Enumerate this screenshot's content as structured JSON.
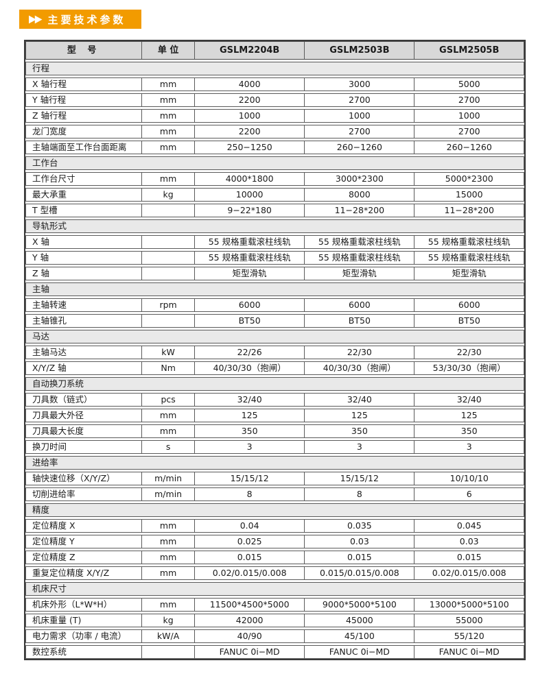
{
  "banner": {
    "arrows": "▶▶",
    "title": "主要技术参数",
    "accent_color": "#F29B00"
  },
  "colors": {
    "header_row_bg": "#D8D8D8",
    "section_row_bg": "#E9E9E9",
    "border": "#5A5A5A"
  },
  "table": {
    "headers": [
      "型  号",
      "单 位",
      "GSLM2204B",
      "GSLM2503B",
      "GSLM2505B"
    ],
    "sections": [
      {
        "title": "行程",
        "rows": [
          {
            "label": "X 轴行程",
            "unit": "mm",
            "values": [
              "4000",
              "3000",
              "5000"
            ]
          },
          {
            "label": "Y 轴行程",
            "unit": "mm",
            "values": [
              "2200",
              "2700",
              "2700"
            ]
          },
          {
            "label": "Z 轴行程",
            "unit": "mm",
            "values": [
              "1000",
              "1000",
              "1000"
            ]
          },
          {
            "label": "龙门宽度",
            "unit": "mm",
            "values": [
              "2200",
              "2700",
              "2700"
            ]
          },
          {
            "label": "主轴端面至工作台面距离",
            "unit": "mm",
            "values": [
              "250−1250",
              "260−1260",
              "260−1260"
            ]
          }
        ]
      },
      {
        "title": "工作台",
        "rows": [
          {
            "label": "工作台尺寸",
            "unit": "mm",
            "values": [
              "4000*1800",
              "3000*2300",
              "5000*2300"
            ]
          },
          {
            "label": "最大承重",
            "unit": "kg",
            "values": [
              "10000",
              "8000",
              "15000"
            ]
          },
          {
            "label": "T 型槽",
            "unit": "",
            "values": [
              "9−22*180",
              "11−28*200",
              "11−28*200"
            ]
          }
        ]
      },
      {
        "title": "导轨形式",
        "rows": [
          {
            "label": "X 轴",
            "unit": "",
            "values": [
              "55 规格重载滚柱线轨",
              "55 规格重载滚柱线轨",
              "55 规格重载滚柱线轨"
            ]
          },
          {
            "label": "Y 轴",
            "unit": "",
            "values": [
              "55 规格重载滚柱线轨",
              "55 规格重载滚柱线轨",
              "55 规格重载滚柱线轨"
            ]
          },
          {
            "label": "Z 轴",
            "unit": "",
            "values": [
              "矩型滑轨",
              "矩型滑轨",
              "矩型滑轨"
            ]
          }
        ]
      },
      {
        "title": "主轴",
        "rows": [
          {
            "label": "主轴转速",
            "unit": "rpm",
            "values": [
              "6000",
              "6000",
              "6000"
            ]
          },
          {
            "label": "主轴锥孔",
            "unit": "",
            "values": [
              "BT50",
              "BT50",
              "BT50"
            ]
          }
        ]
      },
      {
        "title": "马达",
        "rows": [
          {
            "label": "主轴马达",
            "unit": "kW",
            "values": [
              "22/26",
              "22/30",
              "22/30"
            ]
          },
          {
            "label": "X/Y/Z 轴",
            "unit": "Nm",
            "values": [
              "40/30/30（抱闸）",
              "40/30/30（抱闸）",
              "53/30/30（抱闸）"
            ]
          }
        ]
      },
      {
        "title": "自动换刀系统",
        "rows": [
          {
            "label": "刀具数（链式）",
            "unit": "pcs",
            "values": [
              "32/40",
              "32/40",
              "32/40"
            ]
          },
          {
            "label": "刀具最大外径",
            "unit": "mm",
            "values": [
              "125",
              "125",
              "125"
            ]
          },
          {
            "label": "刀具最大长度",
            "unit": "mm",
            "values": [
              "350",
              "350",
              "350"
            ]
          },
          {
            "label": "换刀时间",
            "unit": "s",
            "values": [
              "3",
              "3",
              "3"
            ]
          }
        ]
      },
      {
        "title": "进给率",
        "rows": [
          {
            "label": "轴快速位移（X/Y/Z）",
            "unit": "m/min",
            "values": [
              "15/15/12",
              "15/15/12",
              "10/10/10"
            ]
          },
          {
            "label": "切削进给率",
            "unit": "m/min",
            "values": [
              "8",
              "8",
              "6"
            ]
          }
        ]
      },
      {
        "title": "精度",
        "rows": [
          {
            "label": "定位精度 X",
            "unit": "mm",
            "values": [
              "0.04",
              "0.035",
              "0.045"
            ]
          },
          {
            "label": "定位精度 Y",
            "unit": "mm",
            "values": [
              "0.025",
              "0.03",
              "0.03"
            ]
          },
          {
            "label": "定位精度 Z",
            "unit": "mm",
            "values": [
              "0.015",
              "0.015",
              "0.015"
            ]
          },
          {
            "label": "重复定位精度 X/Y/Z",
            "unit": "mm",
            "values": [
              "0.02/0.015/0.008",
              "0.015/0.015/0.008",
              "0.02/0.015/0.008"
            ]
          }
        ]
      },
      {
        "title": "机床尺寸",
        "rows": [
          {
            "label": "机床外形（L*W*H）",
            "unit": "mm",
            "values": [
              "11500*4500*5000",
              "9000*5000*5100",
              "13000*5000*5100"
            ]
          },
          {
            "label": "机床重量 (T)",
            "unit": "kg",
            "values": [
              "42000",
              "45000",
              "55000"
            ]
          },
          {
            "label": "电力需求（功率 / 电流）",
            "unit": "kW/A",
            "values": [
              "40/90",
              "45/100",
              "55/120"
            ]
          },
          {
            "label": "数控系统",
            "unit": "",
            "values": [
              "FANUC 0i−MD",
              "FANUC 0i−MD",
              "FANUC 0i−MD"
            ]
          }
        ]
      }
    ]
  }
}
